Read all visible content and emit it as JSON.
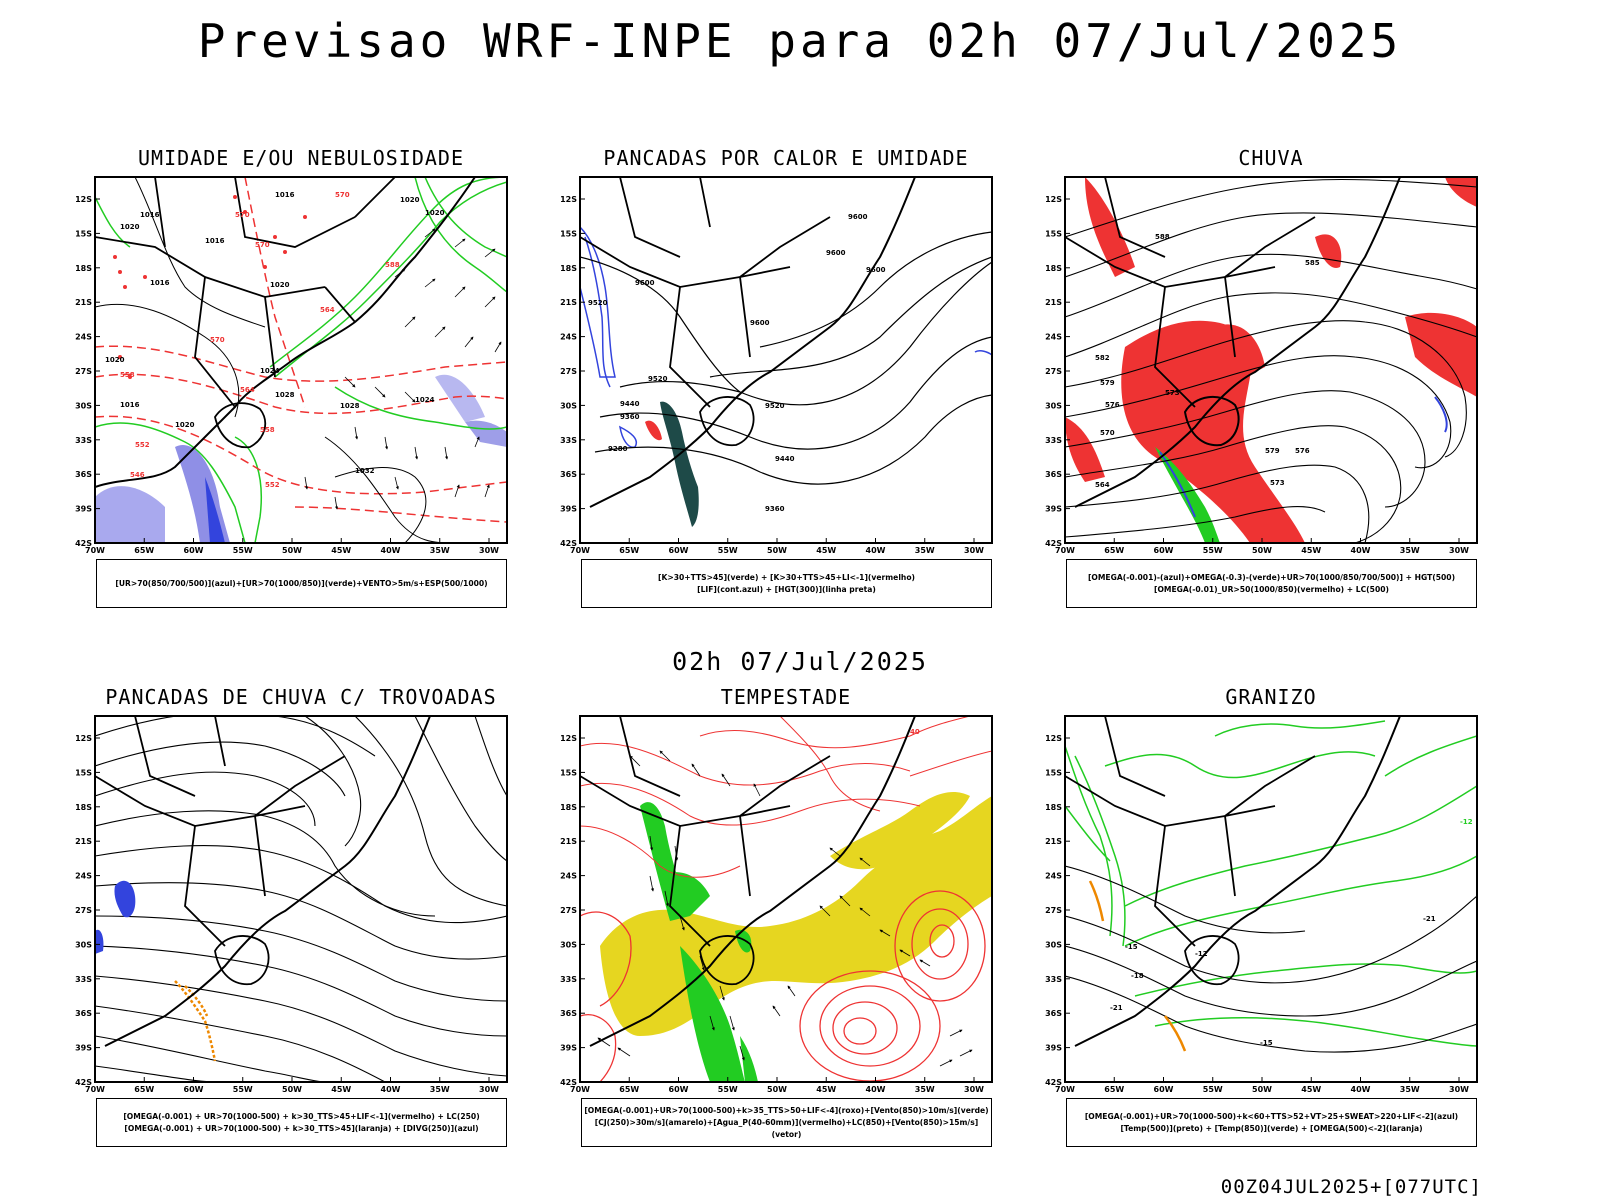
{
  "title": "Previsao WRF-INPE  para 02h 07/Jul/2025",
  "subtitle": "02h 07/Jul/2025",
  "footer": "00Z04JUL2025+[077UTC]",
  "axes": {
    "lat_labels": [
      "12S",
      "15S",
      "18S",
      "21S",
      "24S",
      "27S",
      "30S",
      "33S",
      "36S",
      "39S",
      "42S"
    ],
    "lon_labels": [
      "70W",
      "65W",
      "60W",
      "55W",
      "50W",
      "45W",
      "40W",
      "35W",
      "30W"
    ]
  },
  "panels": [
    {
      "title": "UMIDADE E/OU NEBULOSIDADE",
      "legend": [
        "[UR>70(850/700/500)](azul)+[UR>70(1000/850)](verde)+VENTO>5m/s+ESP(500/1000)"
      ],
      "labels": [
        "1016",
        "1016",
        "1016",
        "1020",
        "1020",
        "1016",
        "1020",
        "1020",
        "1024",
        "1024",
        "1016",
        "1016",
        "1020",
        "1024",
        "1028",
        "1028",
        "1032",
        "1024",
        "1020",
        "570",
        "570",
        "570",
        "564",
        "558",
        "552",
        "546",
        "552",
        "558",
        "564",
        "570",
        "576",
        "582",
        "588",
        "564",
        "588"
      ]
    },
    {
      "title": "PANCADAS POR CALOR E UMIDADE",
      "legend": [
        "[K>30+TTS>45](verde) + [K>30+TTS>45+LI<-1](vermelho)",
        "[LIF](cont.azul) + [HGT(300)](linha preta)"
      ],
      "labels": [
        "9600",
        "9600",
        "9600",
        "9600",
        "9600",
        "9520",
        "9520",
        "9520",
        "9440",
        "9440",
        "9360",
        "9360",
        "9280"
      ]
    },
    {
      "title": "CHUVA",
      "legend": [
        "[OMEGA(-0.001)-(azul)+OMEGA(-0.3)-(verde)+UR>70(1000/850/700/500)] + HGT(500)",
        "[OMEGA(-0.01)_UR>50(1000/850)(vermelho) + LC(500)"
      ],
      "labels": [
        "588",
        "585",
        "582",
        "579",
        "576",
        "573",
        "570",
        "564",
        "576",
        "579",
        "573"
      ]
    },
    {
      "title": "PANCADAS DE CHUVA C/ TROVOADAS",
      "legend": [
        "[OMEGA(-0.001) + UR>70(1000-500) + k>30_TTS>45+LIF<-1](vermelho) + LC(250)",
        "[OMEGA(-0.001) + UR>70(1000-500) + k>30_TTS>45](laranja) + [DIVG(250)](azul)"
      ],
      "labels": []
    },
    {
      "title": "TEMPESTADE",
      "legend": [
        "[OMEGA(-0.001)+UR>70(1000-500)+k>35_TTS>50+LIF<-4](roxo)+[Vento(850)>10m/s](verde)",
        "[CJ(250)>30m/s](amarelo)+[Agua_P(40-60mm)](vermelho)+LC(850)+[Vento(850)>15m/s](vetor)"
      ],
      "labels": [
        "40"
      ]
    },
    {
      "title": "GRANIZO",
      "legend": [
        "[OMEGA(-0.001)+UR>70(1000-500)+k<60+TTS>52+VT>25+SWEAT>220+LIF<-2](azul)",
        "[Temp(500)](preto) + [Temp(850)](verde) + [OMEGA(500)<-2](laranja)"
      ],
      "labels": [
        "-12",
        "-15",
        "-18",
        "-21",
        "-15",
        "-21",
        "-12"
      ]
    }
  ],
  "colors": {
    "blue": "#3344dd",
    "green": "#22cc22",
    "red": "#ee3333",
    "orange": "#ee8800",
    "yellow": "#e6d620",
    "lavender": "#9e9ee8",
    "dark_teal": "#1e4a48"
  }
}
